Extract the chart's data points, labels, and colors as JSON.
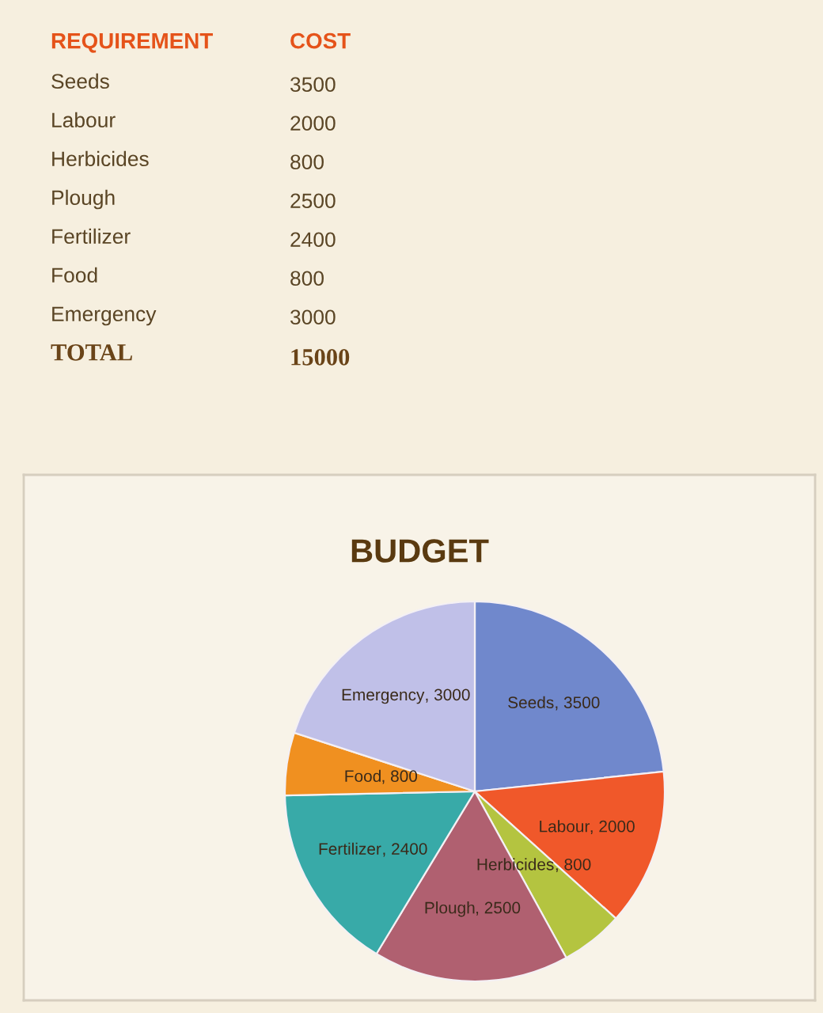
{
  "chart_data": [
    {
      "type": "other",
      "annotations": [
        "REQUIREMENT",
        "COST",
        "Seeds",
        "3500",
        "Labour",
        "2000",
        "Herbicides",
        "800",
        "Plough",
        "2500",
        "Fertilizer",
        "2400",
        "Food",
        "800",
        "Emergency",
        "3000",
        "TOTAL",
        "15000"
      ]
    },
    {
      "type": "pie",
      "title": "BUDGET",
      "categories": [
        "Seeds",
        "Labour",
        "Herbicides",
        "Plough",
        "Fertilizer",
        "Food",
        "Emergency"
      ],
      "values": [
        3500,
        2000,
        800,
        2500,
        2400,
        800,
        3000
      ],
      "colors": [
        "#7088cc",
        "#f0582a",
        "#b4c440",
        "#b06070",
        "#38aaa8",
        "#f09020",
        "#c0c0e8"
      ],
      "value_labels": [
        ", 3500",
        ", 2000",
        ", 800",
        ", 2500",
        ", 2400",
        ", 800",
        ", 3000"
      ]
    }
  ]
}
